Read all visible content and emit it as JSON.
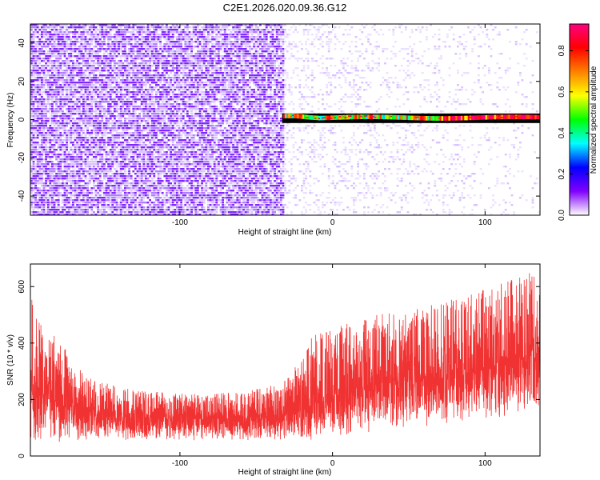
{
  "figure": {
    "title": "C2E1.2026.020.09.36.G12"
  },
  "chart_data": [
    {
      "type": "heatmap",
      "title": "",
      "xlabel": "Height of straight line (km)",
      "ylabel": "Frequency (Hz)",
      "xlim": [
        -198,
        136
      ],
      "ylim": [
        -50,
        50
      ],
      "xticks": [
        -100,
        0,
        100
      ],
      "yticks": [
        -40,
        -20,
        0,
        20,
        40
      ],
      "colorbar": {
        "label": "Normalized spectral amplitude",
        "range": [
          0,
          0.93
        ],
        "ticks": [
          0.0,
          0.2,
          0.4,
          0.6,
          0.8
        ],
        "colors": [
          "#ffffff",
          "#8000ff",
          "#0000ff",
          "#00ffff",
          "#00ff00",
          "#ffff00",
          "#ff8000",
          "#ff0000",
          "#ff0080"
        ]
      },
      "features": {
        "noise_region_x": [
          -198,
          -33
        ],
        "noise_amplitude": 0.05,
        "sparse_region_x": [
          -33,
          136
        ],
        "carrier_start_x": -33,
        "carrier_frequency_hz": [
          0.5,
          1.0,
          1.8
        ],
        "carrier_peak_amplitude": 0.9
      }
    },
    {
      "type": "line",
      "title": "",
      "xlabel": "Height of straight line (km)",
      "ylabel": "SNR (10 * v/v)",
      "xlim": [
        -198,
        136
      ],
      "ylim": [
        0,
        680
      ],
      "xticks": [
        -100,
        0,
        100
      ],
      "yticks": [
        0,
        200,
        400,
        600
      ],
      "color": "#f03232",
      "series": [
        {
          "name": "",
          "x": [
            -198,
            -190,
            -180,
            -170,
            -160,
            -150,
            -140,
            -130,
            -120,
            -110,
            -100,
            -90,
            -80,
            -70,
            -60,
            -50,
            -40,
            -30,
            -20,
            -15,
            -10,
            0,
            10,
            20,
            30,
            40,
            50,
            60,
            70,
            80,
            90,
            100,
            110,
            120,
            130,
            136
          ],
          "mean": [
            260,
            230,
            200,
            175,
            160,
            150,
            143,
            138,
            135,
            133,
            132,
            131,
            130,
            130,
            131,
            133,
            138,
            148,
            165,
            178,
            190,
            215,
            235,
            250,
            258,
            262,
            265,
            270,
            275,
            282,
            292,
            305,
            320,
            335,
            350,
            360
          ],
          "envelope_max": [
            610,
            450,
            420,
            340,
            280,
            260,
            250,
            240,
            230,
            225,
            220,
            220,
            220,
            225,
            225,
            240,
            250,
            270,
            350,
            410,
            440,
            450,
            470,
            490,
            500,
            510,
            520,
            530,
            540,
            560,
            570,
            590,
            610,
            630,
            650,
            665
          ],
          "envelope_min": [
            0,
            40,
            45,
            50,
            55,
            55,
            55,
            55,
            55,
            55,
            55,
            55,
            55,
            55,
            55,
            55,
            55,
            55,
            60,
            40,
            60,
            70,
            70,
            80,
            90,
            90,
            100,
            100,
            110,
            110,
            120,
            120,
            130,
            130,
            140,
            150
          ]
        }
      ]
    }
  ]
}
